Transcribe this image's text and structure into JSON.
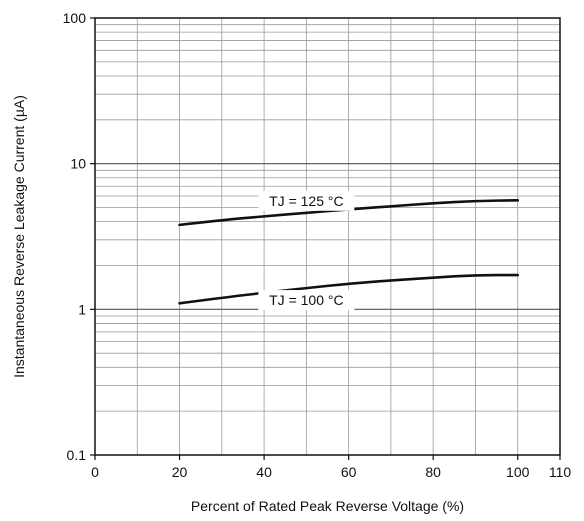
{
  "chart_data": {
    "type": "line",
    "xlabel": "Percent of Rated Peak Reverse Voltage (%)",
    "ylabel": "Instantaneous Reverse Leakage Current (µA)",
    "xlim": [
      0,
      110
    ],
    "ylim": [
      0.1,
      100
    ],
    "y_scale": "log",
    "grid": true,
    "x_ticks": [
      "0",
      "20",
      "40",
      "60",
      "80",
      "100",
      "110"
    ],
    "y_ticks": [
      "0.1",
      "1",
      "10",
      "100"
    ],
    "series": [
      {
        "name": "TJ = 125 °C",
        "x": [
          20,
          30,
          40,
          50,
          60,
          70,
          80,
          90,
          100
        ],
        "y": [
          3.8,
          4.1,
          4.35,
          4.6,
          4.85,
          5.1,
          5.35,
          5.55,
          5.6
        ],
        "color": "#111111"
      },
      {
        "name": "TJ = 100 °C",
        "x": [
          20,
          30,
          40,
          50,
          60,
          70,
          80,
          90,
          100
        ],
        "y": [
          1.1,
          1.2,
          1.3,
          1.4,
          1.5,
          1.58,
          1.65,
          1.72,
          1.72
        ],
        "color": "#111111"
      }
    ]
  }
}
